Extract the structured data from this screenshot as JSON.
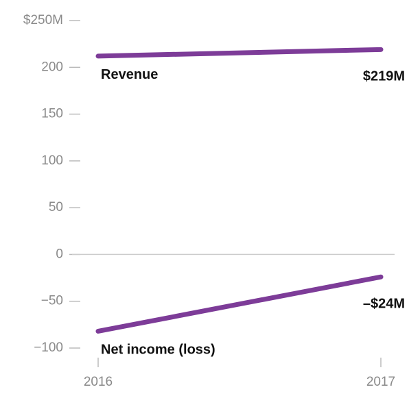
{
  "chart_data": {
    "type": "line",
    "categories": [
      "2016",
      "2017"
    ],
    "series": [
      {
        "name": "Revenue",
        "color": "#7d3c98",
        "values": [
          212,
          219
        ],
        "value_labels": [
          null,
          "$219M"
        ]
      },
      {
        "name": "Net income (loss)",
        "color": "#7d3c98",
        "values": [
          -82,
          -24
        ],
        "value_labels": [
          null,
          "–$24M"
        ]
      }
    ],
    "ylim": [
      -100,
      250
    ],
    "yticks": [
      {
        "value": -100,
        "label": "−100"
      },
      {
        "value": -50,
        "label": "−50"
      },
      0,
      50,
      100,
      150,
      200,
      {
        "value": 250,
        "label": "$250M"
      }
    ]
  }
}
